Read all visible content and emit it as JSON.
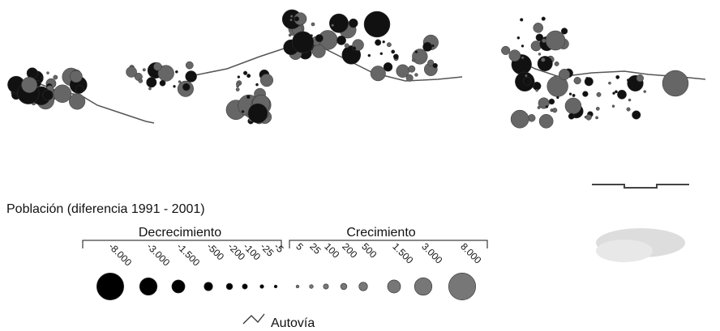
{
  "legend": {
    "title": "Población (diferencia 1991 - 2001)",
    "decrease": {
      "heading": "Decrecimiento",
      "items": [
        {
          "value": -8000,
          "label": "-8.000"
        },
        {
          "value": -3000,
          "label": "-3.000"
        },
        {
          "value": -1500,
          "label": "-1.500"
        },
        {
          "value": -500,
          "label": "-500"
        },
        {
          "value": -200,
          "label": "-200"
        },
        {
          "value": -100,
          "label": "-100"
        },
        {
          "value": -25,
          "label": "-25"
        },
        {
          "value": -5,
          "label": "-5"
        }
      ]
    },
    "increase": {
      "heading": "Crecimiento",
      "items": [
        {
          "value": 5,
          "label": "5"
        },
        {
          "value": 25,
          "label": "25"
        },
        {
          "value": 100,
          "label": "100"
        },
        {
          "value": 200,
          "label": "200"
        },
        {
          "value": 500,
          "label": "500"
        },
        {
          "value": 1500,
          "label": "1.500"
        },
        {
          "value": 3000,
          "label": "3.000"
        },
        {
          "value": 8000,
          "label": "8.000"
        }
      ]
    },
    "road": "Autovía"
  }
}
